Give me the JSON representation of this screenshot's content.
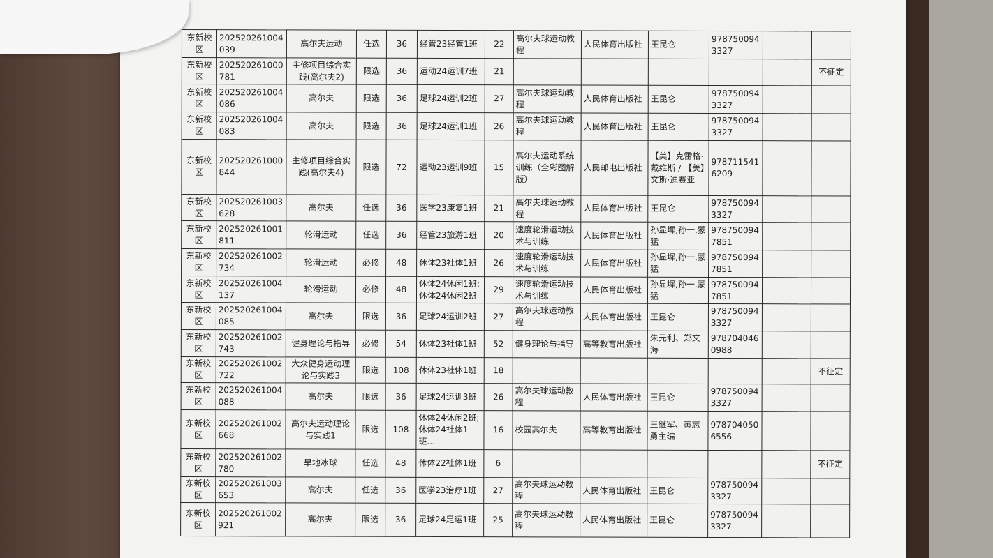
{
  "rows": [
    {
      "campus": "东新校区",
      "code": "202520261004039",
      "course": "高尔夫运动",
      "type": "任选",
      "hours": "36",
      "class": "经管23经管1班",
      "count": "22",
      "textbook": "高尔夫球运动教程",
      "publisher": "人民体育出版社",
      "author": "王昆仑",
      "isbn": "9787500943327",
      "extra": "",
      "note": ""
    },
    {
      "campus": "东新校区",
      "code": "202520261000781",
      "course": "主修项目综合实践(高尔夫2)",
      "type": "限选",
      "hours": "36",
      "class": "运动24运训7班",
      "count": "21",
      "textbook": "",
      "publisher": "",
      "author": "",
      "isbn": "",
      "extra": "",
      "note": "不征定"
    },
    {
      "campus": "东新校区",
      "code": "202520261004086",
      "course": "高尔夫",
      "type": "限选",
      "hours": "36",
      "class": "足球24运训2班",
      "count": "27",
      "textbook": "高尔夫球运动教程",
      "publisher": "人民体育出版社",
      "author": "王昆仑",
      "isbn": "9787500943327",
      "extra": "",
      "note": ""
    },
    {
      "campus": "东新校区",
      "code": "202520261004083",
      "course": "高尔夫",
      "type": "限选",
      "hours": "36",
      "class": "足球24运训1班",
      "count": "26",
      "textbook": "高尔夫球运动教程",
      "publisher": "人民体育出版社",
      "author": "王昆仑",
      "isbn": "9787500943327",
      "extra": "",
      "note": ""
    },
    {
      "campus": "东新校区",
      "code": "202520261000844",
      "course": "主修项目综合实践(高尔夫4)",
      "type": "限选",
      "hours": "72",
      "class": "运动23运训9班",
      "count": "15",
      "textbook": "高尔夫运动系统训练（全彩图解版）",
      "publisher": "人民邮电出版社",
      "author": "【美】克雷格·戴维斯 / 【美】文斯·迪赛亚",
      "isbn": "9787115416209",
      "extra": "",
      "note": ""
    },
    {
      "campus": "东新校区",
      "code": "202520261003628",
      "course": "高尔夫",
      "type": "任选",
      "hours": "36",
      "class": "医学23康复1班",
      "count": "21",
      "textbook": "高尔夫球运动教程",
      "publisher": "人民体育出版社",
      "author": "王昆仑",
      "isbn": "9787500943327",
      "extra": "",
      "note": ""
    },
    {
      "campus": "东新校区",
      "code": "202520261001811",
      "course": "轮滑运动",
      "type": "任选",
      "hours": "36",
      "class": "经管23旅游1班",
      "count": "20",
      "textbook": "速度轮滑运动技术与训练",
      "publisher": "人民体育出版社",
      "author": "孙显墀,孙一,蒙猛",
      "isbn": "9787500947851",
      "extra": "",
      "note": ""
    },
    {
      "campus": "东新校区",
      "code": "202520261002734",
      "course": "轮滑运动",
      "type": "必修",
      "hours": "48",
      "class": "休体23社体1班",
      "count": "26",
      "textbook": "速度轮滑运动技术与训练",
      "publisher": "人民体育出版社",
      "author": "孙显墀,孙一,蒙猛",
      "isbn": "9787500947851",
      "extra": "",
      "note": ""
    },
    {
      "campus": "东新校区",
      "code": "202520261004137",
      "course": "轮滑运动",
      "type": "必修",
      "hours": "48",
      "class": "休体24休闲1班;休体24休闲2班",
      "count": "29",
      "textbook": "速度轮滑运动技术与训练",
      "publisher": "人民体育出版社",
      "author": "孙显墀,孙一,蒙猛",
      "isbn": "9787500947851",
      "extra": "",
      "note": ""
    },
    {
      "campus": "东新校区",
      "code": "202520261004085",
      "course": "高尔夫",
      "type": "限选",
      "hours": "36",
      "class": "足球24运训2班",
      "count": "27",
      "textbook": "高尔夫球运动教程",
      "publisher": "人民体育出版社",
      "author": "王昆仑",
      "isbn": "9787500943327",
      "extra": "",
      "note": ""
    },
    {
      "campus": "东新校区",
      "code": "202520261002743",
      "course": "健身理论与指导",
      "type": "必修",
      "hours": "54",
      "class": "休体23社体1班",
      "count": "52",
      "textbook": "健身理论与指导",
      "publisher": "高等教育出版社",
      "author": "朱元利、郑文海",
      "isbn": "9787040460988",
      "extra": "",
      "note": ""
    },
    {
      "campus": "东新校区",
      "code": "202520261002722",
      "course": "大众健身运动理论与实践3",
      "type": "限选",
      "hours": "108",
      "class": "休体23社体1班",
      "count": "18",
      "textbook": "",
      "publisher": "",
      "author": "",
      "isbn": "",
      "extra": "",
      "note": "不征定"
    },
    {
      "campus": "东新校区",
      "code": "202520261004088",
      "course": "高尔夫",
      "type": "限选",
      "hours": "36",
      "class": "足球24运训3班",
      "count": "26",
      "textbook": "高尔夫球运动教程",
      "publisher": "人民体育出版社",
      "author": "王昆仑",
      "isbn": "9787500943327",
      "extra": "",
      "note": ""
    },
    {
      "campus": "东新校区",
      "code": "202520261002668",
      "course": "高尔夫运动理论与实践1",
      "type": "限选",
      "hours": "108",
      "class": "休体24休闲2班;休体24社体1班...",
      "count": "16",
      "textbook": "校园高尔夫",
      "publisher": "高等教育出版社",
      "author": "王继军、黄志勇主编",
      "isbn": "9787040506556",
      "extra": "",
      "note": ""
    },
    {
      "campus": "东新校区",
      "code": "202520261002780",
      "course": "旱地冰球",
      "type": "任选",
      "hours": "48",
      "class": "休体22社体1班",
      "count": "6",
      "textbook": "",
      "publisher": "",
      "author": "",
      "isbn": "",
      "extra": "",
      "note": "不征定"
    },
    {
      "campus": "东新校区",
      "code": "202520261003653",
      "course": "高尔夫",
      "type": "任选",
      "hours": "36",
      "class": "医学23治疗1班",
      "count": "27",
      "textbook": "高尔夫球运动教程",
      "publisher": "人民体育出版社",
      "author": "王昆仑",
      "isbn": "9787500943327",
      "extra": "",
      "note": ""
    },
    {
      "campus": "东新校区",
      "code": "202520261002921",
      "course": "高尔夫",
      "type": "限选",
      "hours": "36",
      "class": "足球24足运1班",
      "count": "25",
      "textbook": "高尔夫球运动教程",
      "publisher": "人民体育出版社",
      "author": "王昆仑",
      "isbn": "9787500943327",
      "extra": "",
      "note": ""
    }
  ]
}
